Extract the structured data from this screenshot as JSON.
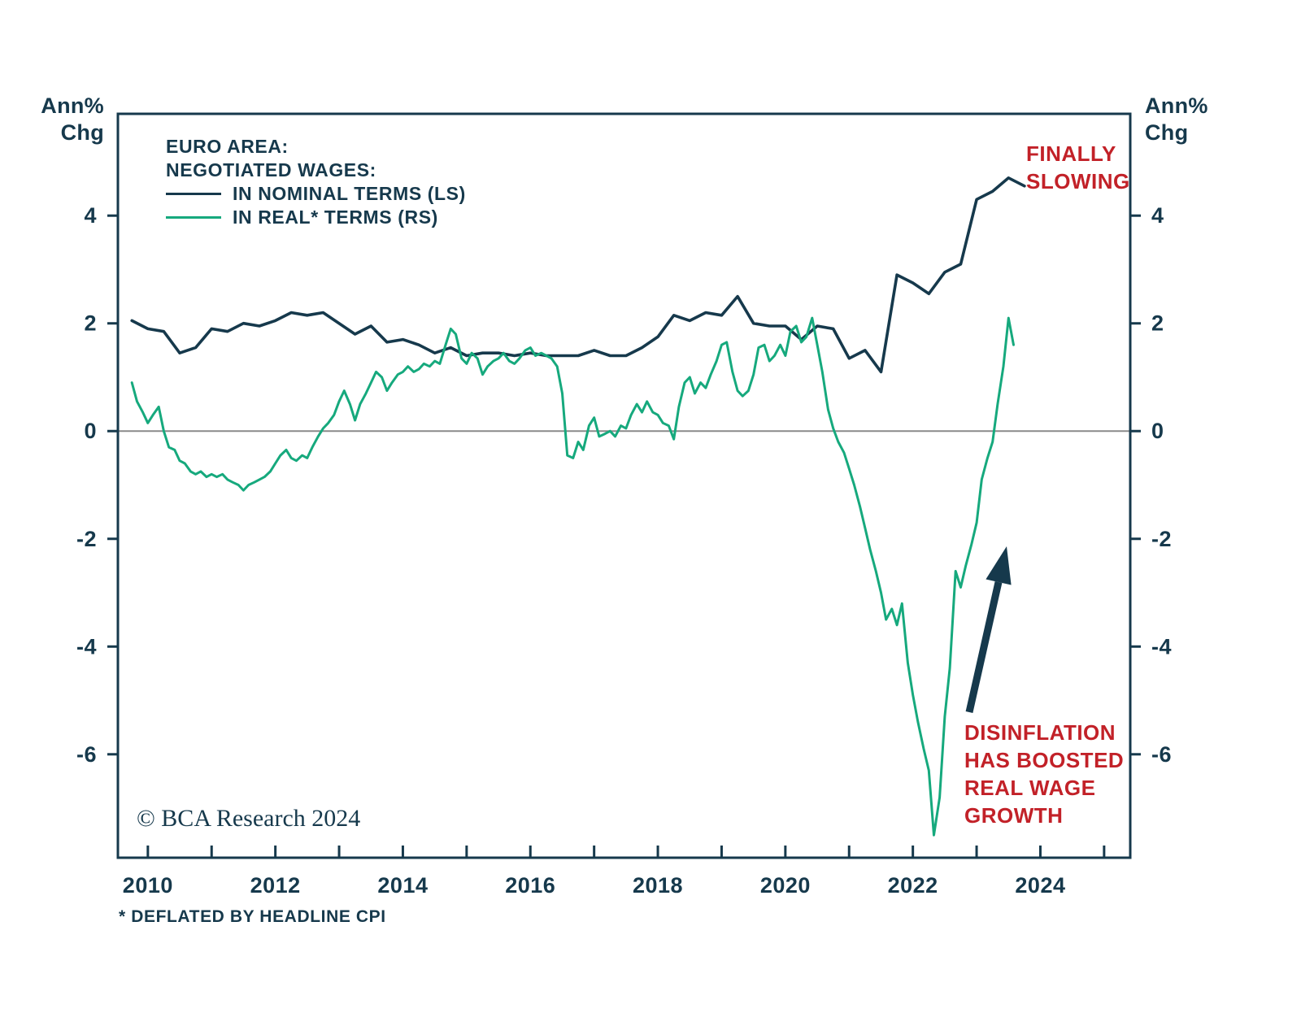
{
  "figure": {
    "axis_unit_left": "Ann%\nChg",
    "axis_unit_right": "Ann%\nChg"
  },
  "legend": {
    "title_line1": "EURO AREA:",
    "title_line2": "NEGOTIATED WAGES:",
    "series": [
      {
        "label": "IN NOMINAL TERMS (LS)",
        "color": "#16394c"
      },
      {
        "label": "IN REAL* TERMS (RS)",
        "color": "#16a97d"
      }
    ]
  },
  "annotations": {
    "finally_slowing": "FINALLY\nSLOWING",
    "disinflation": "DISINFLATION\nHAS BOOSTED\nREAL WAGE\nGROWTH"
  },
  "footer": {
    "copyright": "© BCA Research 2024",
    "footnote": "* DEFLATED BY HEADLINE CPI"
  },
  "colors": {
    "nominal": "#16394c",
    "real": "#16a97d",
    "annotation_red": "#c22128",
    "frame": "#16394c",
    "zero_line": "#8a8a8a"
  },
  "chart_data": {
    "type": "line",
    "title": "EURO AREA: NEGOTIATED WAGES",
    "xlabel": "",
    "ylabel": "Ann% Chg",
    "xlim": [
      2009.53,
      2025.41
    ],
    "ylim": [
      -7.92,
      5.89
    ],
    "yticks": [
      4,
      2,
      0,
      -2,
      -4,
      -6
    ],
    "xticks": [
      2010,
      2011,
      2012,
      2013,
      2014,
      2015,
      2016,
      2017,
      2018,
      2019,
      2020,
      2021,
      2022,
      2023,
      2024,
      2025
    ],
    "xtick_labels": [
      2010,
      2012,
      2014,
      2016,
      2018,
      2020,
      2022,
      2024
    ],
    "grid": false,
    "zero_line": 0,
    "legend_position": "top-left",
    "series": [
      {
        "name": "IN NOMINAL TERMS (LS)",
        "axis": "left",
        "color": "#16394c",
        "points": [
          [
            2009.75,
            2.05
          ],
          [
            2010,
            1.9
          ],
          [
            2010.25,
            1.85
          ],
          [
            2010.5,
            1.45
          ],
          [
            2010.75,
            1.55
          ],
          [
            2011,
            1.9
          ],
          [
            2011.25,
            1.85
          ],
          [
            2011.5,
            2
          ],
          [
            2011.75,
            1.95
          ],
          [
            2012,
            2.05
          ],
          [
            2012.25,
            2.2
          ],
          [
            2012.5,
            2.15
          ],
          [
            2012.75,
            2.2
          ],
          [
            2013,
            2
          ],
          [
            2013.25,
            1.8
          ],
          [
            2013.5,
            1.95
          ],
          [
            2013.75,
            1.65
          ],
          [
            2014,
            1.7
          ],
          [
            2014.25,
            1.6
          ],
          [
            2014.5,
            1.45
          ],
          [
            2014.75,
            1.55
          ],
          [
            2015,
            1.4
          ],
          [
            2015.25,
            1.45
          ],
          [
            2015.5,
            1.45
          ],
          [
            2015.75,
            1.4
          ],
          [
            2016,
            1.45
          ],
          [
            2016.25,
            1.4
          ],
          [
            2016.5,
            1.4
          ],
          [
            2016.75,
            1.4
          ],
          [
            2017,
            1.5
          ],
          [
            2017.25,
            1.4
          ],
          [
            2017.5,
            1.4
          ],
          [
            2017.75,
            1.55
          ],
          [
            2018,
            1.75
          ],
          [
            2018.25,
            2.15
          ],
          [
            2018.5,
            2.05
          ],
          [
            2018.75,
            2.2
          ],
          [
            2019,
            2.15
          ],
          [
            2019.25,
            2.5
          ],
          [
            2019.5,
            2
          ],
          [
            2019.75,
            1.95
          ],
          [
            2020,
            1.95
          ],
          [
            2020.25,
            1.7
          ],
          [
            2020.5,
            1.95
          ],
          [
            2020.75,
            1.9
          ],
          [
            2021,
            1.35
          ],
          [
            2021.25,
            1.5
          ],
          [
            2021.5,
            1.1
          ],
          [
            2021.75,
            2.9
          ],
          [
            2022,
            2.75
          ],
          [
            2022.25,
            2.55
          ],
          [
            2022.5,
            2.95
          ],
          [
            2022.75,
            3.1
          ],
          [
            2023,
            4.3
          ],
          [
            2023.25,
            4.45
          ],
          [
            2023.5,
            4.7
          ],
          [
            2023.75,
            4.55
          ]
        ]
      },
      {
        "name": "IN REAL* TERMS (RS)",
        "axis": "right",
        "color": "#16a97d",
        "points": [
          [
            2009.75,
            0.9
          ],
          [
            2009.83,
            0.55
          ],
          [
            2009.92,
            0.35
          ],
          [
            2010,
            0.15
          ],
          [
            2010.08,
            0.3
          ],
          [
            2010.17,
            0.45
          ],
          [
            2010.25,
            0
          ],
          [
            2010.33,
            -0.3
          ],
          [
            2010.42,
            -0.35
          ],
          [
            2010.5,
            -0.55
          ],
          [
            2010.58,
            -0.6
          ],
          [
            2010.67,
            -0.75
          ],
          [
            2010.75,
            -0.8
          ],
          [
            2010.83,
            -0.75
          ],
          [
            2010.92,
            -0.85
          ],
          [
            2011,
            -0.8
          ],
          [
            2011.08,
            -0.85
          ],
          [
            2011.17,
            -0.8
          ],
          [
            2011.25,
            -0.9
          ],
          [
            2011.33,
            -0.95
          ],
          [
            2011.42,
            -1
          ],
          [
            2011.5,
            -1.1
          ],
          [
            2011.58,
            -1
          ],
          [
            2011.67,
            -0.95
          ],
          [
            2011.75,
            -0.9
          ],
          [
            2011.83,
            -0.85
          ],
          [
            2011.92,
            -0.75
          ],
          [
            2012,
            -0.6
          ],
          [
            2012.08,
            -0.45
          ],
          [
            2012.17,
            -0.35
          ],
          [
            2012.25,
            -0.5
          ],
          [
            2012.33,
            -0.55
          ],
          [
            2012.42,
            -0.45
          ],
          [
            2012.5,
            -0.5
          ],
          [
            2012.58,
            -0.3
          ],
          [
            2012.67,
            -0.1
          ],
          [
            2012.75,
            0.05
          ],
          [
            2012.83,
            0.15
          ],
          [
            2012.92,
            0.3
          ],
          [
            2013,
            0.55
          ],
          [
            2013.08,
            0.75
          ],
          [
            2013.17,
            0.5
          ],
          [
            2013.25,
            0.2
          ],
          [
            2013.33,
            0.5
          ],
          [
            2013.42,
            0.7
          ],
          [
            2013.5,
            0.9
          ],
          [
            2013.58,
            1.1
          ],
          [
            2013.67,
            1
          ],
          [
            2013.75,
            0.75
          ],
          [
            2013.83,
            0.9
          ],
          [
            2013.92,
            1.05
          ],
          [
            2014,
            1.1
          ],
          [
            2014.08,
            1.2
          ],
          [
            2014.17,
            1.1
          ],
          [
            2014.25,
            1.15
          ],
          [
            2014.33,
            1.25
          ],
          [
            2014.42,
            1.2
          ],
          [
            2014.5,
            1.3
          ],
          [
            2014.58,
            1.25
          ],
          [
            2014.67,
            1.6
          ],
          [
            2014.75,
            1.9
          ],
          [
            2014.83,
            1.8
          ],
          [
            2014.92,
            1.35
          ],
          [
            2015,
            1.25
          ],
          [
            2015.08,
            1.45
          ],
          [
            2015.17,
            1.35
          ],
          [
            2015.25,
            1.05
          ],
          [
            2015.33,
            1.2
          ],
          [
            2015.42,
            1.3
          ],
          [
            2015.5,
            1.35
          ],
          [
            2015.58,
            1.45
          ],
          [
            2015.67,
            1.3
          ],
          [
            2015.75,
            1.25
          ],
          [
            2015.83,
            1.35
          ],
          [
            2015.92,
            1.5
          ],
          [
            2016,
            1.55
          ],
          [
            2016.08,
            1.4
          ],
          [
            2016.17,
            1.45
          ],
          [
            2016.25,
            1.4
          ],
          [
            2016.33,
            1.35
          ],
          [
            2016.42,
            1.2
          ],
          [
            2016.5,
            0.7
          ],
          [
            2016.58,
            -0.45
          ],
          [
            2016.67,
            -0.5
          ],
          [
            2016.75,
            -0.2
          ],
          [
            2016.83,
            -0.35
          ],
          [
            2016.92,
            0.1
          ],
          [
            2017,
            0.25
          ],
          [
            2017.08,
            -0.1
          ],
          [
            2017.17,
            -0.05
          ],
          [
            2017.25,
            0
          ],
          [
            2017.33,
            -0.1
          ],
          [
            2017.42,
            0.1
          ],
          [
            2017.5,
            0.05
          ],
          [
            2017.58,
            0.3
          ],
          [
            2017.67,
            0.5
          ],
          [
            2017.75,
            0.35
          ],
          [
            2017.83,
            0.55
          ],
          [
            2017.92,
            0.35
          ],
          [
            2018,
            0.3
          ],
          [
            2018.08,
            0.15
          ],
          [
            2018.17,
            0.1
          ],
          [
            2018.25,
            -0.15
          ],
          [
            2018.33,
            0.45
          ],
          [
            2018.42,
            0.9
          ],
          [
            2018.5,
            1
          ],
          [
            2018.58,
            0.7
          ],
          [
            2018.67,
            0.9
          ],
          [
            2018.75,
            0.8
          ],
          [
            2018.83,
            1.05
          ],
          [
            2018.92,
            1.3
          ],
          [
            2019,
            1.6
          ],
          [
            2019.08,
            1.65
          ],
          [
            2019.17,
            1.1
          ],
          [
            2019.25,
            0.75
          ],
          [
            2019.33,
            0.65
          ],
          [
            2019.42,
            0.75
          ],
          [
            2019.5,
            1.05
          ],
          [
            2019.58,
            1.55
          ],
          [
            2019.67,
            1.6
          ],
          [
            2019.75,
            1.3
          ],
          [
            2019.83,
            1.4
          ],
          [
            2019.92,
            1.6
          ],
          [
            2020,
            1.4
          ],
          [
            2020.08,
            1.85
          ],
          [
            2020.17,
            1.95
          ],
          [
            2020.25,
            1.65
          ],
          [
            2020.33,
            1.75
          ],
          [
            2020.42,
            2.1
          ],
          [
            2020.5,
            1.6
          ],
          [
            2020.58,
            1.1
          ],
          [
            2020.67,
            0.4
          ],
          [
            2020.75,
            0.05
          ],
          [
            2020.83,
            -0.2
          ],
          [
            2020.92,
            -0.4
          ],
          [
            2021,
            -0.7
          ],
          [
            2021.08,
            -1
          ],
          [
            2021.17,
            -1.4
          ],
          [
            2021.25,
            -1.8
          ],
          [
            2021.33,
            -2.2
          ],
          [
            2021.42,
            -2.6
          ],
          [
            2021.5,
            -3
          ],
          [
            2021.58,
            -3.5
          ],
          [
            2021.67,
            -3.3
          ],
          [
            2021.75,
            -3.6
          ],
          [
            2021.83,
            -3.2
          ],
          [
            2021.92,
            -4.3
          ],
          [
            2022,
            -4.9
          ],
          [
            2022.08,
            -5.4
          ],
          [
            2022.17,
            -5.9
          ],
          [
            2022.25,
            -6.3
          ],
          [
            2022.33,
            -7.5
          ],
          [
            2022.42,
            -6.8
          ],
          [
            2022.5,
            -5.3
          ],
          [
            2022.58,
            -4.4
          ],
          [
            2022.67,
            -2.6
          ],
          [
            2022.75,
            -2.9
          ],
          [
            2022.83,
            -2.5
          ],
          [
            2022.92,
            -2.1
          ],
          [
            2023,
            -1.7
          ],
          [
            2023.08,
            -0.9
          ],
          [
            2023.17,
            -0.5
          ],
          [
            2023.25,
            -0.2
          ],
          [
            2023.33,
            0.5
          ],
          [
            2023.42,
            1.2
          ],
          [
            2023.5,
            2.1
          ],
          [
            2023.58,
            1.6
          ]
        ]
      }
    ]
  }
}
